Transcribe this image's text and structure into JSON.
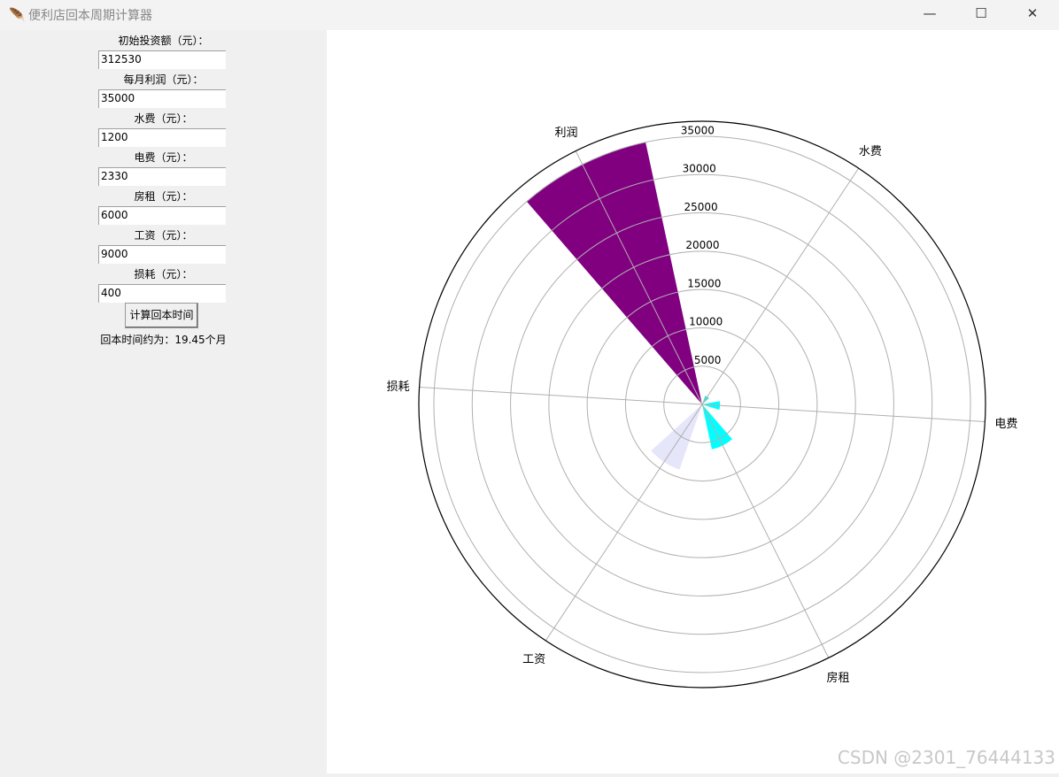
{
  "window": {
    "title": "便利店回本周期计算器",
    "minimize": "—",
    "maximize": "☐",
    "close": "✕",
    "icon": "feather-icon"
  },
  "form": {
    "fields": [
      {
        "label": "初始投资额（元）：",
        "value": "312530"
      },
      {
        "label": "每月利润（元）：",
        "value": "35000"
      },
      {
        "label": "水费（元）：",
        "value": "1200"
      },
      {
        "label": "电费（元）：",
        "value": "2330"
      },
      {
        "label": "房租（元）：",
        "value": "6000"
      },
      {
        "label": "工资（元）：",
        "value": "9000"
      },
      {
        "label": "损耗（元）：",
        "value": "400"
      }
    ],
    "button": "计算回本时间",
    "result": "回本时间约为：19.45个月"
  },
  "chart_data": {
    "type": "bar",
    "projection": "polar",
    "categories": [
      "利润",
      "水费",
      "电费",
      "房租",
      "工资",
      "损耗"
    ],
    "values": [
      35000,
      1200,
      2330,
      6000,
      9000,
      400
    ],
    "colors": [
      "#800080",
      "#40e0d0",
      "#00ffff",
      "#00ffff",
      "#e6e6fa",
      "#ffffff"
    ],
    "r_ticks": [
      5000,
      10000,
      15000,
      20000,
      25000,
      30000,
      35000
    ],
    "rlim": [
      0,
      36960
    ],
    "grid": true
  },
  "watermark": "CSDN @2301_76444133"
}
